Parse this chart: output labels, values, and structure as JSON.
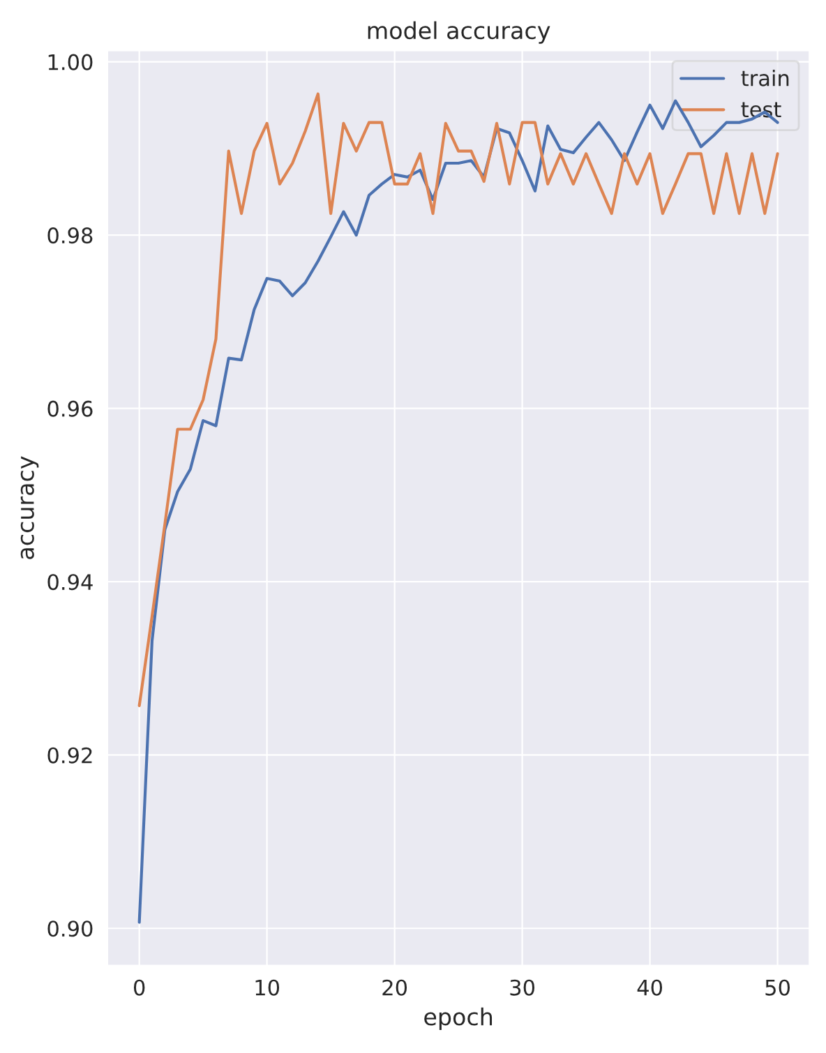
{
  "chart_data": {
    "type": "line",
    "title": "model accuracy",
    "xlabel": "epoch",
    "ylabel": "accuracy",
    "x": [
      0,
      1,
      2,
      3,
      4,
      5,
      6,
      7,
      8,
      9,
      10,
      11,
      12,
      13,
      14,
      15,
      16,
      17,
      18,
      19,
      20,
      21,
      22,
      23,
      24,
      25,
      26,
      27,
      28,
      29,
      30,
      31,
      32,
      33,
      34,
      35,
      36,
      37,
      38,
      39,
      40,
      41,
      42,
      43,
      44,
      45,
      46,
      47,
      48,
      49,
      50
    ],
    "series": [
      {
        "name": "train",
        "color": "#4c72b0",
        "values": [
          0.9007,
          0.9332,
          0.946,
          0.9504,
          0.953,
          0.9586,
          0.958,
          0.9658,
          0.9656,
          0.9714,
          0.975,
          0.9747,
          0.973,
          0.9745,
          0.977,
          0.9798,
          0.9827,
          0.98,
          0.9846,
          0.9859,
          0.987,
          0.9867,
          0.9875,
          0.9841,
          0.9883,
          0.9883,
          0.9886,
          0.9867,
          0.9923,
          0.9918,
          0.9886,
          0.9851,
          0.9926,
          0.9899,
          0.9895,
          0.9913,
          0.993,
          0.991,
          0.9886,
          0.9919,
          0.995,
          0.9923,
          0.9955,
          0.993,
          0.9902,
          0.9915,
          0.993,
          0.993,
          0.9934,
          0.9942,
          0.993
        ]
      },
      {
        "name": "test",
        "color": "#dd8452",
        "values": [
          0.9257,
          0.936,
          0.9466,
          0.9576,
          0.9576,
          0.961,
          0.968,
          0.9897,
          0.9825,
          0.9897,
          0.9929,
          0.9859,
          0.9883,
          0.992,
          0.9963,
          0.9825,
          0.9929,
          0.9897,
          0.993,
          0.993,
          0.9859,
          0.9859,
          0.9894,
          0.9825,
          0.9929,
          0.9897,
          0.9897,
          0.9862,
          0.9929,
          0.9859,
          0.993,
          0.993,
          0.9859,
          0.9894,
          0.9859,
          0.9894,
          0.9859,
          0.9825,
          0.9894,
          0.9859,
          0.9894,
          0.9825,
          0.9859,
          0.9894,
          0.9894,
          0.9825,
          0.9894,
          0.9825,
          0.9894,
          0.9825,
          0.9894
        ]
      }
    ],
    "xlim": [
      -2.5,
      52.5
    ],
    "ylim": [
      0.8957,
      1.0013
    ],
    "xticks": [
      0,
      10,
      20,
      30,
      40,
      50
    ],
    "yticks": [
      {
        "value": 0.9,
        "label": "0.90"
      },
      {
        "value": 0.92,
        "label": "0.92"
      },
      {
        "value": 0.94,
        "label": "0.94"
      },
      {
        "value": 0.96,
        "label": "0.96"
      },
      {
        "value": 0.98,
        "label": "0.98"
      },
      {
        "value": 1.0,
        "label": "1.00"
      }
    ],
    "grid": true,
    "legend": "upper right",
    "marker": "none",
    "line_style": "solid"
  }
}
